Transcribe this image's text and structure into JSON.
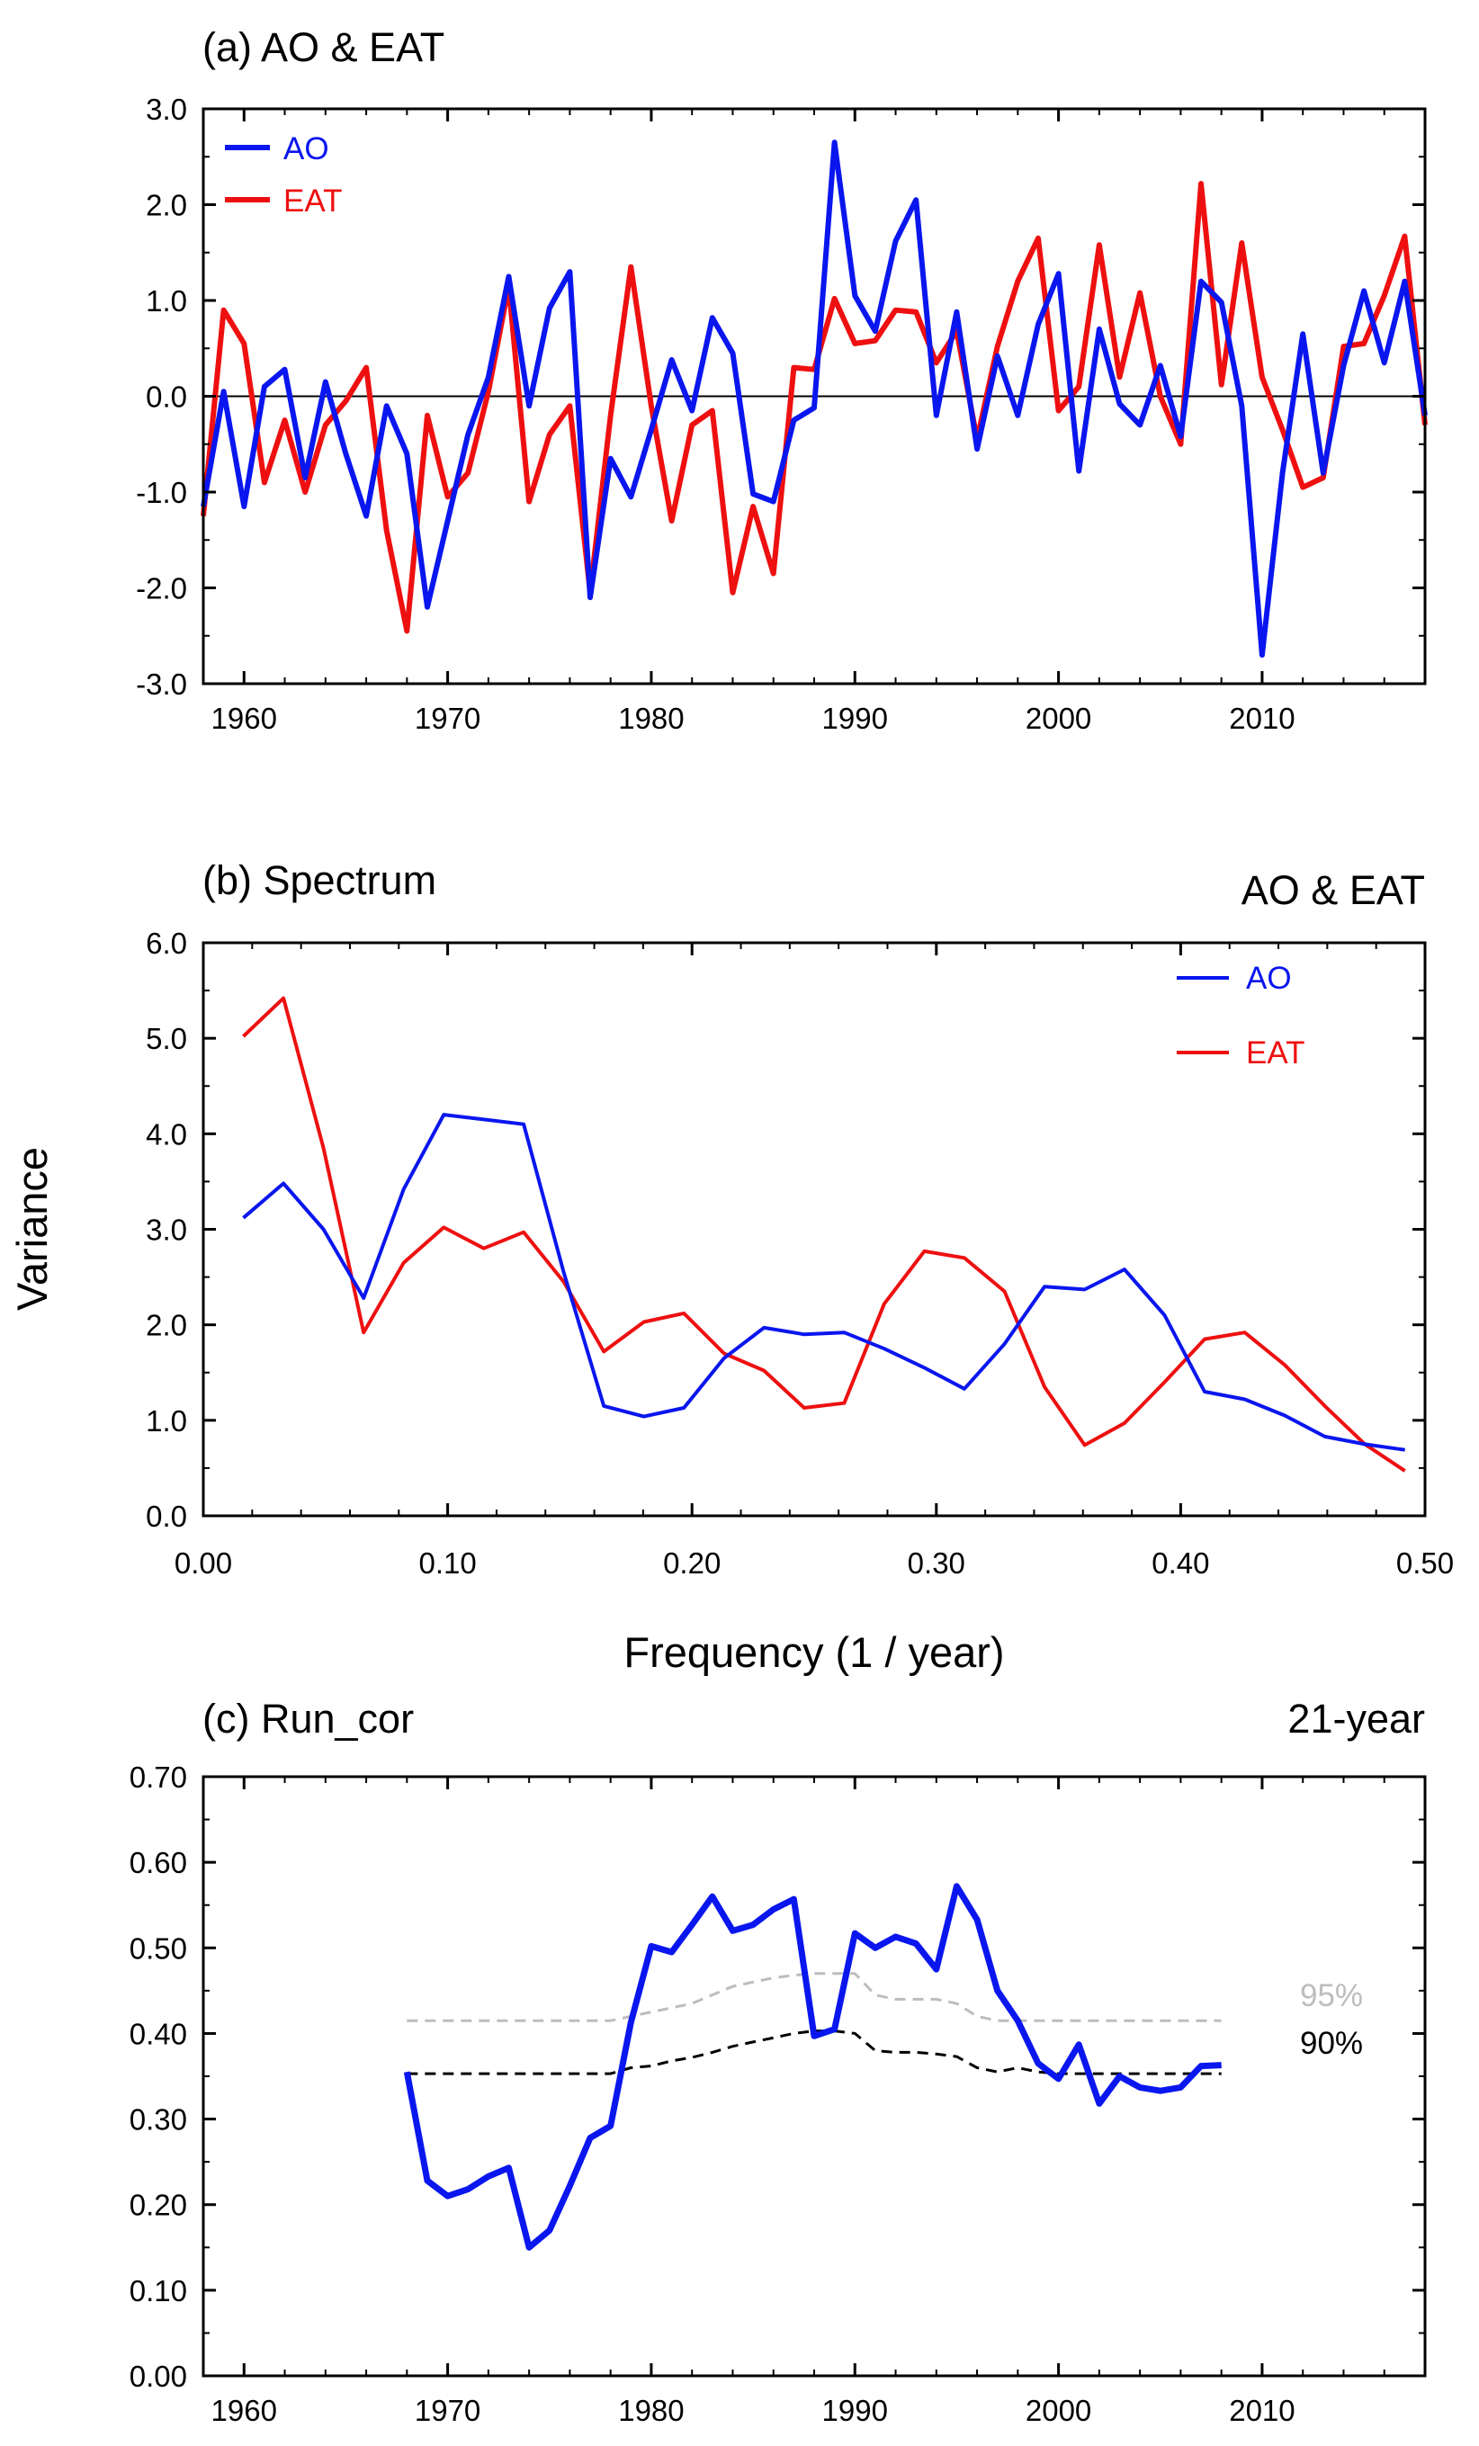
{
  "colors": {
    "ao": "#0a16ee",
    "eat": "#ee1010",
    "sig95": "#bdbdbd",
    "sig90": "#000000",
    "zero": "#000000"
  },
  "chart_data": [
    {
      "type": "line",
      "title": "(a) AO & EAT",
      "xlim": [
        1958,
        2018
      ],
      "ylim": [
        -3.0,
        3.0
      ],
      "x_ticks": [
        "1960",
        "1970",
        "1980",
        "1990",
        "2000",
        "2010"
      ],
      "y_ticks": [
        "3.0",
        "2.0",
        "1.0",
        "0.0",
        "-1.0",
        "-2.0",
        "-3.0"
      ],
      "zero_line": true,
      "legend_position": "top-left",
      "years": [
        1958,
        1959,
        1960,
        1961,
        1962,
        1963,
        1964,
        1965,
        1966,
        1967,
        1968,
        1969,
        1970,
        1971,
        1972,
        1973,
        1974,
        1975,
        1976,
        1977,
        1978,
        1979,
        1980,
        1981,
        1982,
        1983,
        1984,
        1985,
        1986,
        1987,
        1988,
        1989,
        1990,
        1991,
        1992,
        1993,
        1994,
        1995,
        1996,
        1997,
        1998,
        1999,
        2000,
        2001,
        2002,
        2003,
        2004,
        2005,
        2006,
        2007,
        2008,
        2009,
        2010,
        2011,
        2012,
        2013,
        2014,
        2015,
        2016,
        2017,
        2018
      ],
      "series": [
        {
          "name": "AO",
          "color_key": "ao",
          "values": [
            -1.15,
            0.05,
            -1.15,
            0.1,
            0.28,
            -0.85,
            0.15,
            -0.6,
            -1.25,
            -0.1,
            -0.6,
            -2.2,
            -1.3,
            -0.4,
            0.2,
            1.25,
            -0.1,
            0.92,
            1.3,
            -2.1,
            -0.65,
            -1.05,
            -0.35,
            0.38,
            -0.15,
            0.82,
            0.45,
            -1.02,
            -1.1,
            -0.25,
            -0.12,
            2.65,
            1.05,
            0.68,
            1.62,
            2.05,
            -0.2,
            0.88,
            -0.55,
            0.42,
            -0.2,
            0.75,
            1.28,
            -0.78,
            0.7,
            -0.08,
            -0.3,
            0.32,
            -0.42,
            1.2,
            0.98,
            -0.1,
            -2.7,
            -0.8,
            0.65,
            -0.8,
            0.32,
            1.1,
            0.35,
            1.2,
            -0.2
          ]
        },
        {
          "name": "EAT",
          "color_key": "eat",
          "values": [
            -1.25,
            0.9,
            0.55,
            -0.9,
            -0.25,
            -1.0,
            -0.3,
            -0.05,
            0.3,
            -1.4,
            -2.45,
            -0.2,
            -1.05,
            -0.8,
            0.05,
            1.15,
            -1.1,
            -0.4,
            -0.1,
            -2.05,
            -0.2,
            1.35,
            -0.1,
            -1.3,
            -0.3,
            -0.15,
            -2.05,
            -1.15,
            -1.85,
            0.3,
            0.28,
            1.02,
            0.55,
            0.58,
            0.9,
            0.88,
            0.35,
            0.68,
            -0.45,
            0.52,
            1.2,
            1.65,
            -0.15,
            0.1,
            1.58,
            0.2,
            1.08,
            0.0,
            -0.5,
            2.22,
            0.12,
            1.6,
            0.2,
            -0.35,
            -0.95,
            -0.85,
            0.52,
            0.55,
            1.05,
            1.67,
            -0.3
          ]
        }
      ]
    },
    {
      "type": "line",
      "title": "(b) Spectrum",
      "subtitle": "AO & EAT",
      "xlabel": "Frequency (1 / year)",
      "ylabel": "Variance",
      "xlim": [
        0.0,
        0.5
      ],
      "ylim": [
        0.0,
        6.0
      ],
      "x_ticks": [
        "0.00",
        "0.10",
        "0.20",
        "0.30",
        "0.40",
        "0.50"
      ],
      "y_ticks": [
        "6.0",
        "5.0",
        "4.0",
        "3.0",
        "2.0",
        "1.0",
        "0.0"
      ],
      "legend_position": "top-right",
      "x": [
        0.0164,
        0.0328,
        0.0492,
        0.0656,
        0.082,
        0.0984,
        0.1148,
        0.1311,
        0.1475,
        0.1639,
        0.1803,
        0.1967,
        0.2131,
        0.2295,
        0.2459,
        0.2623,
        0.2787,
        0.2951,
        0.3115,
        0.3279,
        0.3443,
        0.3607,
        0.377,
        0.3934,
        0.4098,
        0.4262,
        0.4426,
        0.459,
        0.4754,
        0.4918
      ],
      "series": [
        {
          "name": "AO",
          "color_key": "ao",
          "values": [
            3.12,
            3.48,
            3.0,
            2.28,
            3.42,
            4.2,
            4.15,
            4.1,
            2.55,
            1.15,
            1.04,
            1.13,
            1.65,
            1.97,
            1.9,
            1.92,
            1.75,
            1.55,
            1.33,
            1.8,
            2.4,
            2.37,
            2.58,
            2.1,
            1.3,
            1.22,
            1.05,
            0.83,
            0.75,
            0.69
          ]
        },
        {
          "name": "EAT",
          "color_key": "eat",
          "values": [
            5.02,
            5.42,
            3.85,
            1.92,
            2.65,
            3.02,
            2.8,
            2.97,
            2.45,
            1.72,
            2.03,
            2.12,
            1.7,
            1.52,
            1.13,
            1.18,
            2.22,
            2.77,
            2.7,
            2.35,
            1.35,
            0.74,
            0.97,
            1.4,
            1.85,
            1.92,
            1.58,
            1.15,
            0.75,
            0.47
          ]
        }
      ]
    },
    {
      "type": "line",
      "title": "(c) Run_cor",
      "subtitle": "21-year",
      "xlim": [
        1958,
        2018
      ],
      "ylim": [
        0.0,
        0.7
      ],
      "x_ticks": [
        "1960",
        "1970",
        "1980",
        "1990",
        "2000",
        "2010"
      ],
      "y_ticks": [
        "0.70",
        "0.60",
        "0.50",
        "0.40",
        "0.30",
        "0.20",
        "0.10",
        "0.00"
      ],
      "years": [
        1968,
        1969,
        1970,
        1971,
        1972,
        1973,
        1974,
        1975,
        1976,
        1977,
        1978,
        1979,
        1980,
        1981,
        1982,
        1983,
        1984,
        1985,
        1986,
        1987,
        1988,
        1989,
        1990,
        1991,
        1992,
        1993,
        1994,
        1995,
        1996,
        1997,
        1998,
        1999,
        2000,
        2001,
        2002,
        2003,
        2004,
        2005,
        2006,
        2007,
        2008
      ],
      "series": [
        {
          "name": "",
          "color_key": "ao",
          "values": [
            0.355,
            0.228,
            0.21,
            0.218,
            0.233,
            0.243,
            0.15,
            0.17,
            0.222,
            0.278,
            0.292,
            0.413,
            0.502,
            0.495,
            0.527,
            0.56,
            0.52,
            0.527,
            0.545,
            0.557,
            0.397,
            0.405,
            0.517,
            0.5,
            0.513,
            0.505,
            0.475,
            0.572,
            0.533,
            0.45,
            0.415,
            0.365,
            0.347,
            0.387,
            0.318,
            0.35,
            0.337,
            0.333,
            0.337,
            0.362,
            0.363
          ]
        }
      ],
      "significance": [
        {
          "label": "95%",
          "color_key": "sig95",
          "values": [
            0.415,
            0.415,
            0.415,
            0.415,
            0.415,
            0.415,
            0.415,
            0.415,
            0.415,
            0.415,
            0.415,
            0.42,
            0.425,
            0.43,
            0.435,
            0.445,
            0.455,
            0.46,
            0.465,
            0.468,
            0.47,
            0.47,
            0.47,
            0.445,
            0.44,
            0.44,
            0.44,
            0.435,
            0.42,
            0.415,
            0.415,
            0.415,
            0.415,
            0.415,
            0.415,
            0.415,
            0.415,
            0.415,
            0.415,
            0.415,
            0.415
          ]
        },
        {
          "label": "90%",
          "color_key": "sig90",
          "values": [
            0.353,
            0.353,
            0.353,
            0.353,
            0.353,
            0.353,
            0.353,
            0.353,
            0.353,
            0.353,
            0.353,
            0.36,
            0.362,
            0.368,
            0.372,
            0.378,
            0.385,
            0.39,
            0.395,
            0.4,
            0.403,
            0.403,
            0.4,
            0.38,
            0.378,
            0.378,
            0.376,
            0.373,
            0.36,
            0.355,
            0.36,
            0.355,
            0.353,
            0.353,
            0.353,
            0.353,
            0.353,
            0.353,
            0.353,
            0.353,
            0.353
          ]
        }
      ]
    }
  ]
}
